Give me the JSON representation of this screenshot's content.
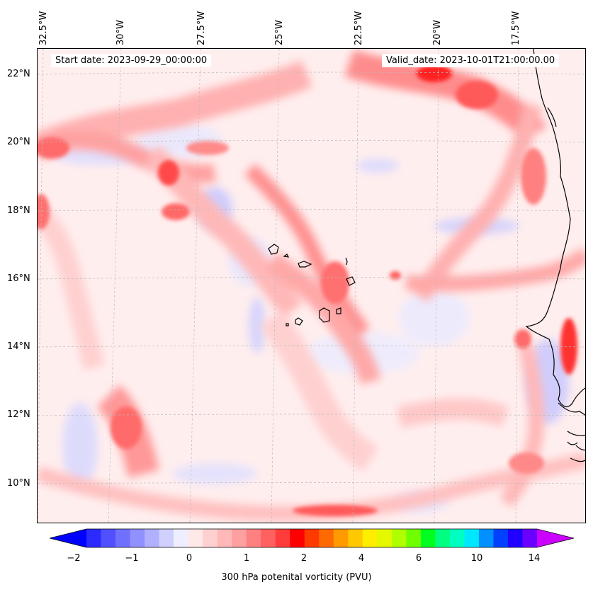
{
  "header": {
    "start_date": "Start date: 2023-09-29_00:00:00",
    "valid_date": "Valid_date: 2023-10-01T21:00:00.00"
  },
  "map": {
    "lon_labels": [
      "32.5°W",
      "30°W",
      "27.5°W",
      "25°W",
      "22.5°W",
      "20°W",
      "17.5°W"
    ],
    "lat_labels": [
      "22°N",
      "20°N",
      "18°N",
      "16°N",
      "14°N",
      "12°N",
      "10°N"
    ],
    "gridlines": "dashed"
  },
  "colorbar": {
    "label": "300 hPa potenital vorticity (PVU)",
    "ticks": [
      "−2",
      "−1",
      "0",
      "1",
      "2",
      "4",
      "6",
      "10",
      "14"
    ],
    "colors": [
      "#0000ff",
      "#2b2bff",
      "#5050ff",
      "#7070ff",
      "#9090ff",
      "#b0b0ff",
      "#d0d0ff",
      "#eeeeff",
      "#ffe8e8",
      "#ffd0d0",
      "#ffb8b8",
      "#ffa0a0",
      "#ff8080",
      "#ff6060",
      "#ff3c3c",
      "#ff0000",
      "#ff3a00",
      "#ff6a00",
      "#ff9a00",
      "#ffc800",
      "#ffee00",
      "#e4f800",
      "#b0ff00",
      "#70ff00",
      "#00ff20",
      "#00ff80",
      "#00ffc0",
      "#00e8ff",
      "#0090ff",
      "#0040ff",
      "#2000ff",
      "#6a00ff",
      "#c000ff"
    ],
    "under_color": "#0000ff",
    "over_color": "#cc00ff"
  }
}
